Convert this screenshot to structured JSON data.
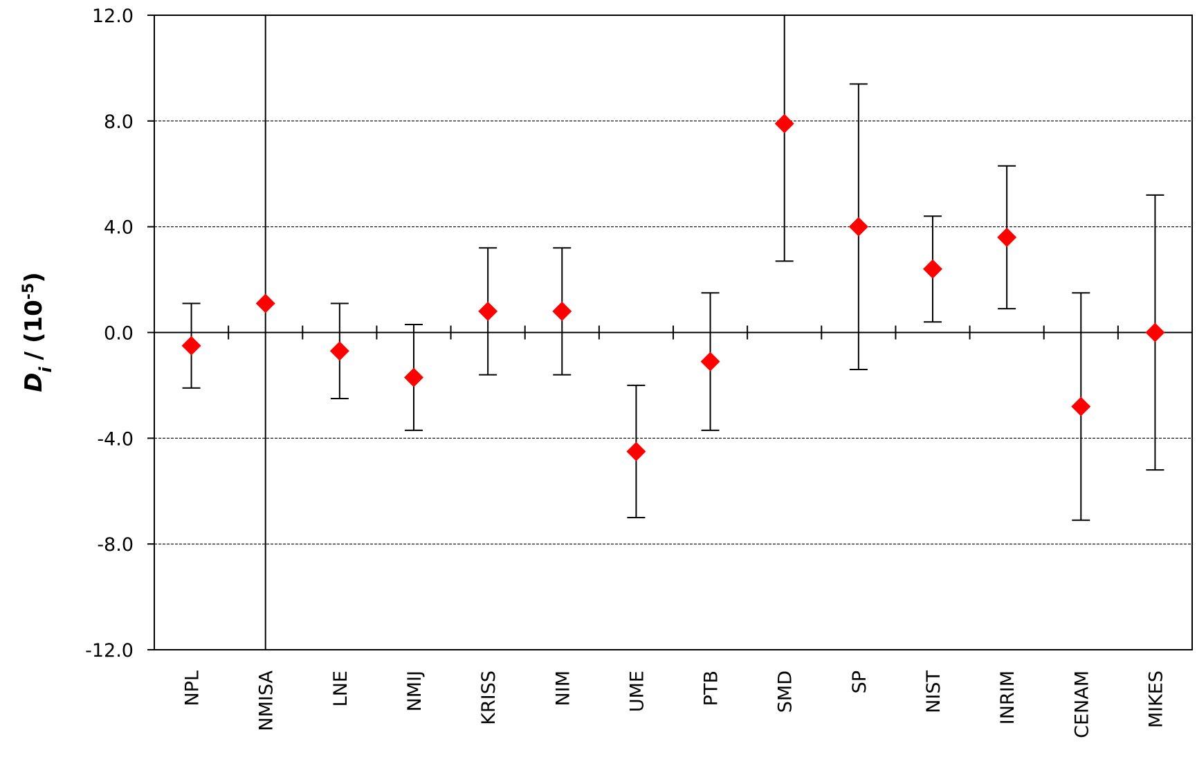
{
  "chart_data": {
    "type": "errorbar",
    "y_label": {
      "symbol": "D",
      "subscript": "i",
      "unit": "/ (10",
      "exponent": "-5",
      "close": ")"
    },
    "categories": [
      "NPL",
      "NMISA",
      "LNE",
      "NMIJ",
      "KRISS",
      "NIM",
      "UME",
      "PTB",
      "SMD",
      "SP",
      "NIST",
      "INRIM",
      "CENAM",
      "MIKES"
    ],
    "values": [
      -0.5,
      1.1,
      -0.7,
      -1.7,
      0.8,
      0.8,
      -4.5,
      -1.1,
      7.9,
      4.0,
      2.4,
      3.6,
      -2.8,
      0.0
    ],
    "errors": [
      1.6,
      14,
      1.8,
      2.0,
      2.4,
      2.4,
      2.5,
      2.6,
      5.2,
      5.4,
      2.0,
      2.7,
      4.3,
      5.2
    ],
    "color": "#ff0000",
    "ylim": [
      -12,
      12
    ],
    "yticks": [
      {
        "value": -12,
        "label": "-12.0"
      },
      {
        "value": -8,
        "label": "-8.0"
      },
      {
        "value": -4,
        "label": "-4.0"
      },
      {
        "value": 0,
        "label": "0.0"
      },
      {
        "value": 4,
        "label": "4.0"
      },
      {
        "value": 8,
        "label": "8.0"
      },
      {
        "value": 12,
        "label": "12.0"
      }
    ],
    "grid": true
  }
}
